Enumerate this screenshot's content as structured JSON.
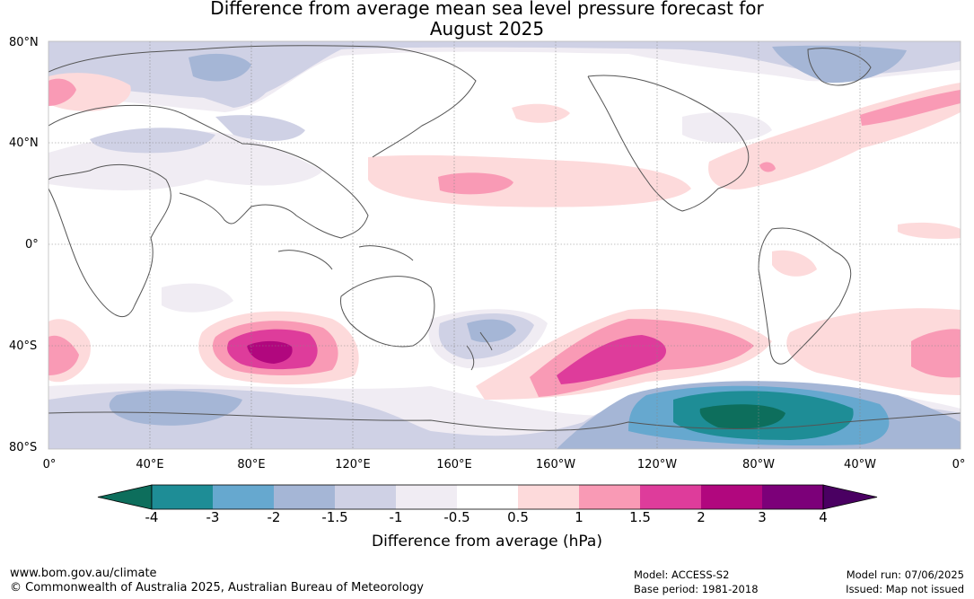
{
  "title": {
    "line1": "Difference from average mean sea level pressure forecast for",
    "line2": "August 2025"
  },
  "map": {
    "lat_labels": [
      "80°N",
      "40°N",
      "0°",
      "40°S",
      "80°S"
    ],
    "lon_labels": [
      "0°",
      "40°E",
      "80°E",
      "120°E",
      "160°E",
      "160°W",
      "120°W",
      "80°W",
      "40°W",
      "0°"
    ],
    "anomaly_regions": [
      {
        "region": "South Indian Ocean",
        "peak_hPa": 2.5
      },
      {
        "region": "South Pacific",
        "peak_hPa": 2.0
      },
      {
        "region": "Amundsen/Bellingshausen Sea",
        "peak_hPa": -3.5
      },
      {
        "region": "North Pacific",
        "peak_hPa": 1.2
      },
      {
        "region": "North Atlantic",
        "peak_hPa": 1.2
      },
      {
        "region": "Greenland",
        "peak_hPa": -1.5
      }
    ]
  },
  "colorbar": {
    "title": "Difference from average (hPa)",
    "ticks": [
      "-4",
      "-3",
      "-2",
      "-1.5",
      "-1",
      "-0.5",
      "0.5",
      "1",
      "1.5",
      "2",
      "3",
      "4"
    ],
    "colors": [
      "#0d6e5c",
      "#1e8d96",
      "#66a8cf",
      "#a5b6d6",
      "#cfd1e5",
      "#f0ecf3",
      "#ffffff",
      "#fddadb",
      "#f99ab5",
      "#de3c9b",
      "#b1077e",
      "#7c0079",
      "#4a0062"
    ]
  },
  "footer": {
    "url": "www.bom.gov.au/climate",
    "copyright": "© Commonwealth of Australia 2025, Australian Bureau of Meteorology",
    "model": "Model: ACCESS-S2",
    "base_period": "Base period: 1981-2018",
    "model_run": "Model run: 07/06/2025",
    "issued": "Issued: Map not issued"
  }
}
